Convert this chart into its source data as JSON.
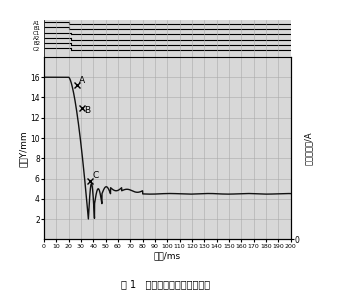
{
  "title": "图 1   真空断路器分闸行程曲线",
  "xlabel": "时间/ms",
  "ylabel_left": "行程Y/mm",
  "ylabel_right": "分等圈电流/A",
  "xlim": [
    0,
    200
  ],
  "ylim_left": [
    0,
    18
  ],
  "xticks": [
    0,
    10,
    20,
    30,
    40,
    50,
    60,
    70,
    80,
    90,
    100,
    110,
    120,
    130,
    140,
    150,
    160,
    170,
    180,
    190,
    200
  ],
  "yticks_left": [
    2,
    4,
    6,
    8,
    10,
    12,
    14,
    16
  ],
  "bg_color": "#d8d8d8",
  "top_labels": [
    "A1",
    "B1",
    "C1",
    "A2",
    "B2",
    "C2"
  ],
  "top_step_x": [
    20,
    20,
    22,
    22,
    22,
    22
  ],
  "point_A": [
    27,
    15.2
  ],
  "point_B": [
    31,
    13.0
  ],
  "point_C": [
    37,
    5.8
  ],
  "curve_color": "#111111",
  "grid_color": "#aaaaaa"
}
